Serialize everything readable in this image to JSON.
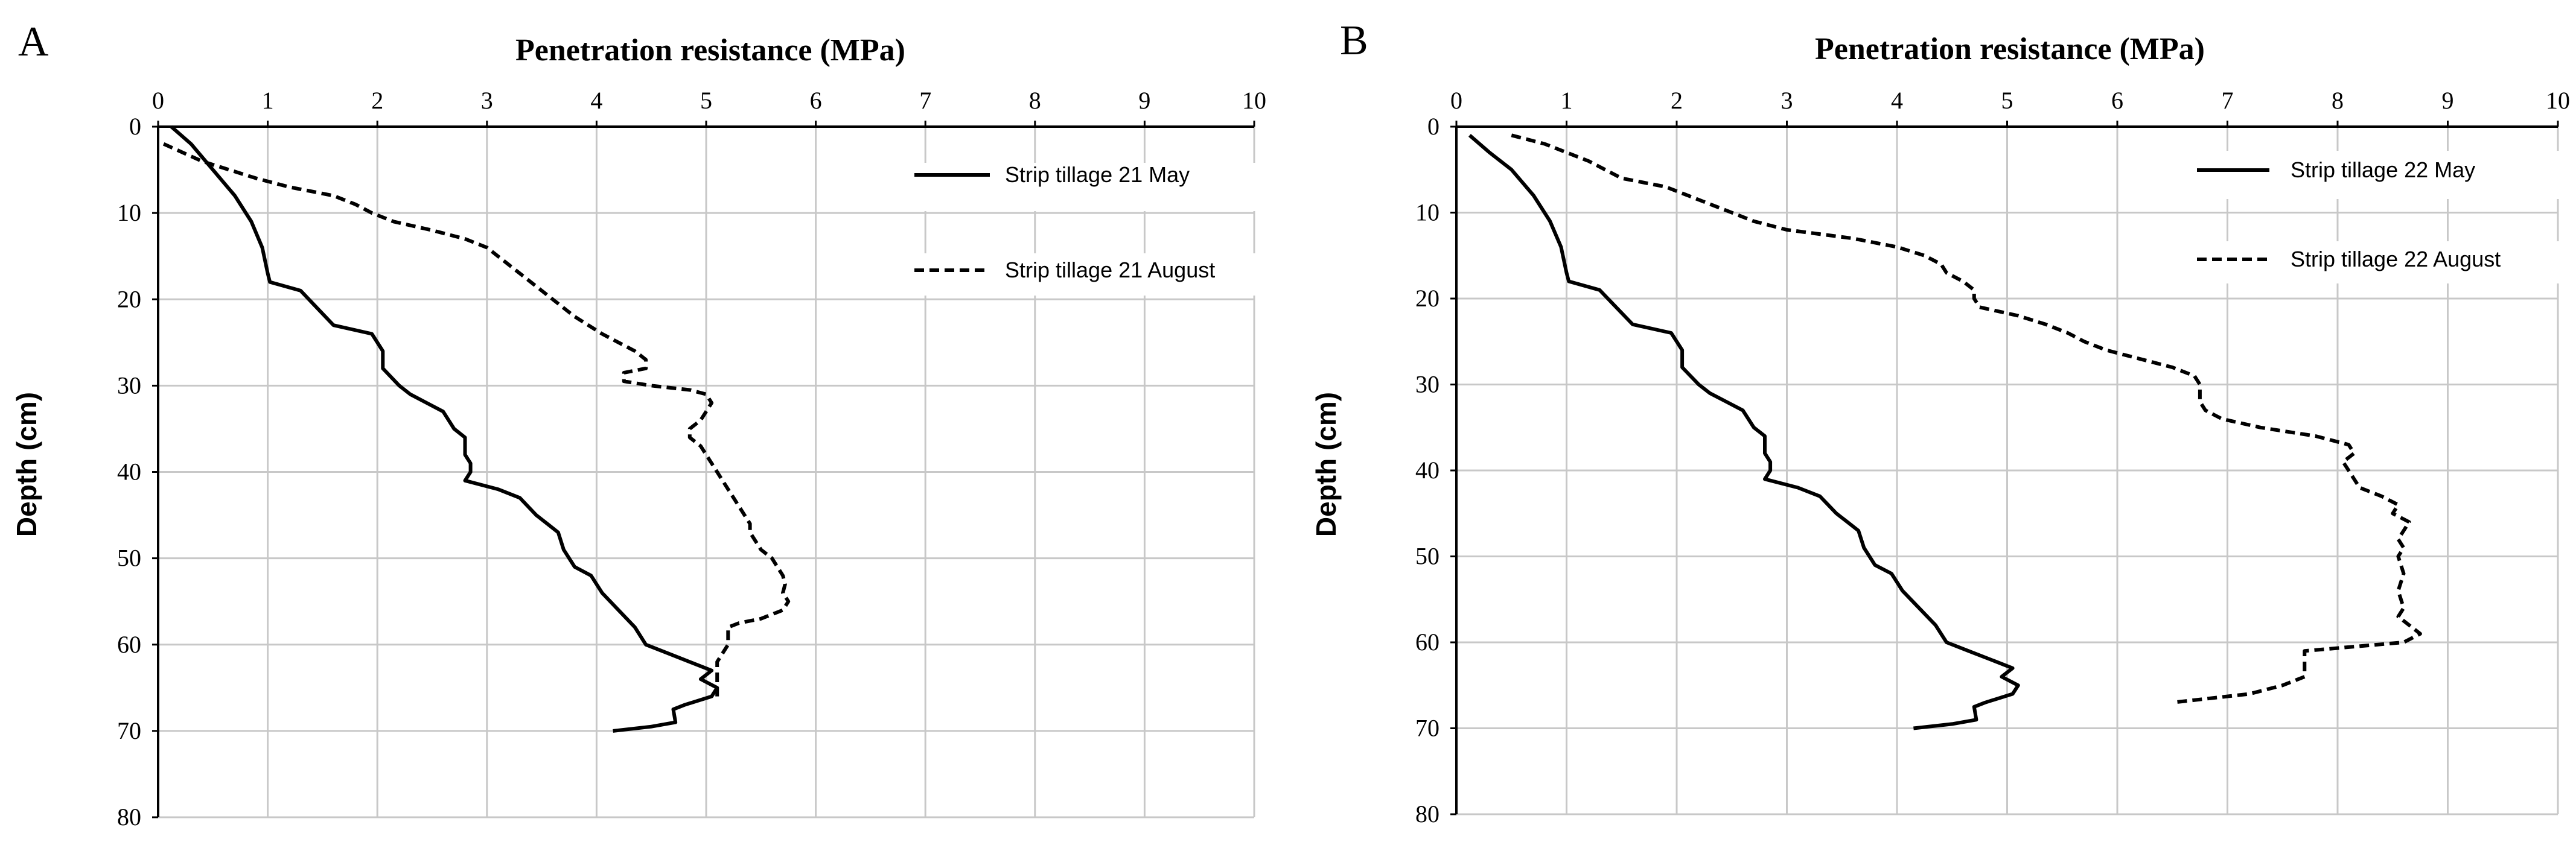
{
  "chart_data": [
    {
      "type": "line",
      "panel_label": "A",
      "title": "Penetration resistance  (MPa)",
      "xlabel": "Penetration resistance  (MPa)",
      "ylabel": "Depth (cm)",
      "xlim": [
        0,
        10
      ],
      "ylim": [
        0,
        80
      ],
      "x_ticks": [
        0,
        1,
        2,
        3,
        4,
        5,
        6,
        7,
        8,
        9,
        10
      ],
      "y_ticks": [
        0,
        10,
        20,
        30,
        40,
        50,
        60,
        70,
        80
      ],
      "y_inverted": true,
      "grid": true,
      "legend_position": "top-right",
      "series": [
        {
          "name": "Strip tillage 21 May",
          "style": "solid",
          "points": [
            [
              0.12,
              0
            ],
            [
              0.3,
              2
            ],
            [
              0.5,
              5
            ],
            [
              0.7,
              8
            ],
            [
              0.85,
              11
            ],
            [
              0.95,
              14
            ],
            [
              1.0,
              17
            ],
            [
              1.02,
              18
            ],
            [
              1.3,
              19
            ],
            [
              1.45,
              21
            ],
            [
              1.6,
              23
            ],
            [
              1.95,
              24
            ],
            [
              2.05,
              26
            ],
            [
              2.05,
              27
            ],
            [
              2.05,
              28
            ],
            [
              2.2,
              30
            ],
            [
              2.3,
              31
            ],
            [
              2.45,
              32
            ],
            [
              2.6,
              33
            ],
            [
              2.7,
              35
            ],
            [
              2.8,
              36
            ],
            [
              2.8,
              38
            ],
            [
              2.85,
              39
            ],
            [
              2.85,
              40
            ],
            [
              2.8,
              41
            ],
            [
              3.1,
              42
            ],
            [
              3.3,
              43
            ],
            [
              3.45,
              45
            ],
            [
              3.55,
              46
            ],
            [
              3.65,
              47
            ],
            [
              3.7,
              49
            ],
            [
              3.75,
              50
            ],
            [
              3.8,
              51
            ],
            [
              3.95,
              52
            ],
            [
              4.05,
              54
            ],
            [
              4.2,
              56
            ],
            [
              4.35,
              58
            ],
            [
              4.45,
              60
            ],
            [
              4.65,
              61
            ],
            [
              4.85,
              62
            ],
            [
              5.05,
              63
            ],
            [
              4.95,
              64
            ],
            [
              5.1,
              65
            ],
            [
              5.05,
              66
            ],
            [
              4.8,
              67
            ],
            [
              4.7,
              67.5
            ],
            [
              4.72,
              69
            ],
            [
              4.5,
              69.5
            ],
            [
              4.15,
              70
            ]
          ]
        },
        {
          "name": "Strip tillage 21 August",
          "style": "dashed",
          "points": [
            [
              0.05,
              2
            ],
            [
              0.4,
              4
            ],
            [
              0.9,
              6
            ],
            [
              1.2,
              7
            ],
            [
              1.6,
              8
            ],
            [
              1.8,
              9
            ],
            [
              1.95,
              10
            ],
            [
              2.15,
              11
            ],
            [
              2.5,
              12
            ],
            [
              2.8,
              13
            ],
            [
              3.0,
              14
            ],
            [
              3.2,
              16
            ],
            [
              3.4,
              18
            ],
            [
              3.6,
              20
            ],
            [
              3.8,
              22
            ],
            [
              4.05,
              24
            ],
            [
              4.2,
              25
            ],
            [
              4.35,
              26
            ],
            [
              4.45,
              27
            ],
            [
              4.45,
              28
            ],
            [
              4.25,
              28.5
            ],
            [
              4.25,
              29.5
            ],
            [
              4.5,
              30
            ],
            [
              4.85,
              30.5
            ],
            [
              5.0,
              31
            ],
            [
              5.05,
              32
            ],
            [
              5.0,
              33
            ],
            [
              4.95,
              34
            ],
            [
              4.85,
              35
            ],
            [
              4.85,
              36
            ],
            [
              4.95,
              37
            ],
            [
              5.0,
              38
            ],
            [
              5.05,
              39
            ],
            [
              5.1,
              40
            ],
            [
              5.15,
              41
            ],
            [
              5.2,
              42
            ],
            [
              5.25,
              43
            ],
            [
              5.3,
              44
            ],
            [
              5.35,
              45
            ],
            [
              5.4,
              46
            ],
            [
              5.4,
              47
            ],
            [
              5.45,
              48
            ],
            [
              5.5,
              49
            ],
            [
              5.6,
              50
            ],
            [
              5.65,
              51
            ],
            [
              5.7,
              52
            ],
            [
              5.72,
              53
            ],
            [
              5.7,
              54
            ],
            [
              5.75,
              55
            ],
            [
              5.7,
              56
            ],
            [
              5.5,
              57
            ],
            [
              5.3,
              57.5
            ],
            [
              5.2,
              58
            ],
            [
              5.2,
              59
            ],
            [
              5.2,
              60
            ],
            [
              5.15,
              61
            ],
            [
              5.1,
              62
            ],
            [
              5.1,
              63
            ],
            [
              5.1,
              64
            ],
            [
              5.1,
              65
            ],
            [
              5.1,
              66
            ]
          ]
        }
      ]
    },
    {
      "type": "line",
      "panel_label": "B",
      "title": "Penetration resistance  (MPa)",
      "xlabel": "Penetration resistance  (MPa)",
      "ylabel": "Depth (cm)",
      "xlim": [
        0,
        10
      ],
      "ylim": [
        0,
        80
      ],
      "x_ticks": [
        0,
        1,
        2,
        3,
        4,
        5,
        6,
        7,
        8,
        9,
        10
      ],
      "y_ticks": [
        0,
        10,
        20,
        30,
        40,
        50,
        60,
        70,
        80
      ],
      "y_inverted": true,
      "grid": true,
      "legend_position": "top-right",
      "series": [
        {
          "name": "Strip tillage 22 May",
          "style": "solid",
          "points": [
            [
              0.12,
              1
            ],
            [
              0.3,
              3
            ],
            [
              0.5,
              5
            ],
            [
              0.7,
              8
            ],
            [
              0.85,
              11
            ],
            [
              0.95,
              14
            ],
            [
              1.0,
              17
            ],
            [
              1.02,
              18
            ],
            [
              1.3,
              19
            ],
            [
              1.45,
              21
            ],
            [
              1.6,
              23
            ],
            [
              1.95,
              24
            ],
            [
              2.05,
              26
            ],
            [
              2.05,
              27
            ],
            [
              2.05,
              28
            ],
            [
              2.2,
              30
            ],
            [
              2.3,
              31
            ],
            [
              2.45,
              32
            ],
            [
              2.6,
              33
            ],
            [
              2.7,
              35
            ],
            [
              2.8,
              36
            ],
            [
              2.8,
              38
            ],
            [
              2.85,
              39
            ],
            [
              2.85,
              40
            ],
            [
              2.8,
              41
            ],
            [
              3.1,
              42
            ],
            [
              3.3,
              43
            ],
            [
              3.45,
              45
            ],
            [
              3.55,
              46
            ],
            [
              3.65,
              47
            ],
            [
              3.7,
              49
            ],
            [
              3.75,
              50
            ],
            [
              3.8,
              51
            ],
            [
              3.95,
              52
            ],
            [
              4.05,
              54
            ],
            [
              4.2,
              56
            ],
            [
              4.35,
              58
            ],
            [
              4.45,
              60
            ],
            [
              4.65,
              61
            ],
            [
              4.85,
              62
            ],
            [
              5.05,
              63
            ],
            [
              4.95,
              64
            ],
            [
              5.1,
              65
            ],
            [
              5.05,
              66
            ],
            [
              4.8,
              67
            ],
            [
              4.7,
              67.5
            ],
            [
              4.72,
              69
            ],
            [
              4.5,
              69.5
            ],
            [
              4.15,
              70
            ]
          ]
        },
        {
          "name": "Strip tillage 22 August",
          "style": "dashed",
          "points": [
            [
              0.5,
              1
            ],
            [
              0.8,
              2
            ],
            [
              1.0,
              3
            ],
            [
              1.2,
              4
            ],
            [
              1.35,
              5
            ],
            [
              1.5,
              6
            ],
            [
              1.9,
              7
            ],
            [
              2.1,
              8
            ],
            [
              2.3,
              9
            ],
            [
              2.5,
              10
            ],
            [
              2.7,
              11
            ],
            [
              3.0,
              12
            ],
            [
              3.6,
              13
            ],
            [
              4.0,
              14
            ],
            [
              4.25,
              15
            ],
            [
              4.4,
              16
            ],
            [
              4.45,
              17
            ],
            [
              4.6,
              18
            ],
            [
              4.7,
              19
            ],
            [
              4.7,
              20
            ],
            [
              4.75,
              21
            ],
            [
              5.1,
              22
            ],
            [
              5.35,
              23
            ],
            [
              5.55,
              24
            ],
            [
              5.7,
              25
            ],
            [
              5.9,
              26
            ],
            [
              6.2,
              27
            ],
            [
              6.5,
              28
            ],
            [
              6.7,
              29
            ],
            [
              6.75,
              30
            ],
            [
              6.75,
              31
            ],
            [
              6.75,
              32
            ],
            [
              6.8,
              33
            ],
            [
              6.95,
              34
            ],
            [
              7.3,
              35
            ],
            [
              7.8,
              36
            ],
            [
              8.1,
              37
            ],
            [
              8.15,
              38
            ],
            [
              8.05,
              39
            ],
            [
              8.1,
              40
            ],
            [
              8.15,
              41
            ],
            [
              8.2,
              42
            ],
            [
              8.4,
              43
            ],
            [
              8.55,
              44
            ],
            [
              8.5,
              45
            ],
            [
              8.65,
              46
            ],
            [
              8.6,
              47
            ],
            [
              8.55,
              48
            ],
            [
              8.6,
              49
            ],
            [
              8.55,
              50
            ],
            [
              8.6,
              52
            ],
            [
              8.55,
              54
            ],
            [
              8.6,
              56
            ],
            [
              8.55,
              57
            ],
            [
              8.65,
              58
            ],
            [
              8.75,
              59
            ],
            [
              8.6,
              60
            ],
            [
              7.7,
              61
            ],
            [
              7.7,
              62
            ],
            [
              7.7,
              63
            ],
            [
              7.7,
              64
            ],
            [
              7.5,
              65
            ],
            [
              7.2,
              66
            ],
            [
              6.5,
              67
            ]
          ]
        }
      ]
    }
  ]
}
